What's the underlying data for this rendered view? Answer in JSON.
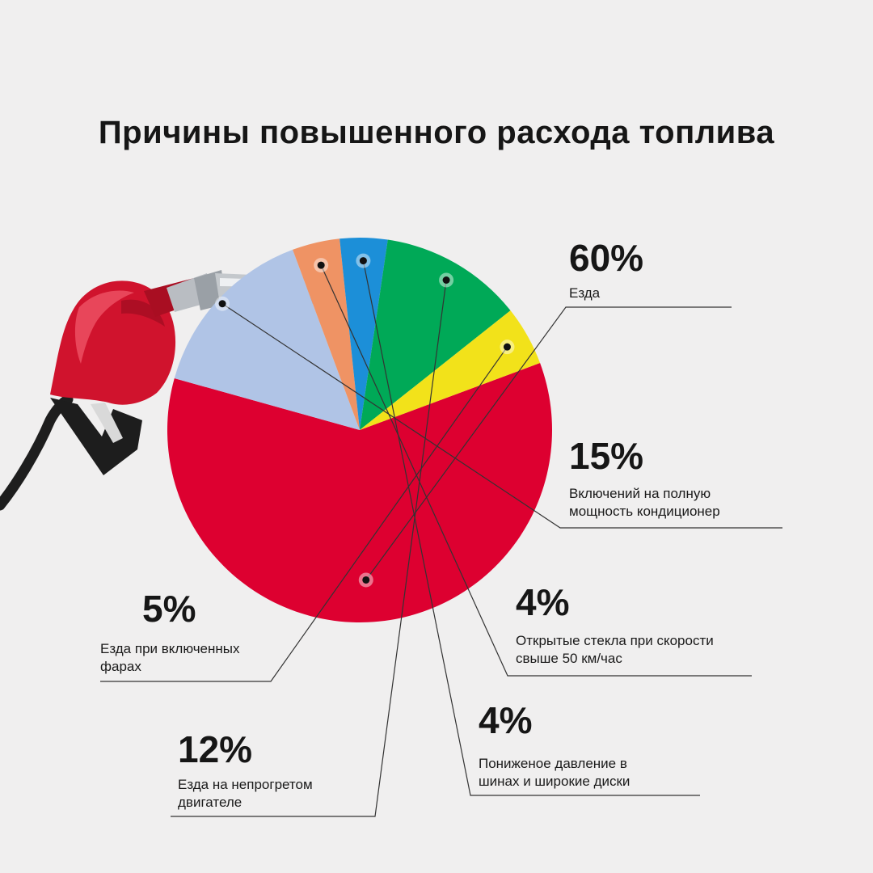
{
  "title": "Причины повышенного расхода топлива",
  "colors": {
    "background": "#f0efef",
    "text": "#161616",
    "leader": "#333333"
  },
  "icon": "fuel-nozzle-icon",
  "chart_data": {
    "type": "pie",
    "title": "Причины повышенного расхода топлива",
    "slices": [
      {
        "value": 60,
        "value_label": "60%",
        "label": "Езда",
        "color": "#dd0030"
      },
      {
        "value": 15,
        "value_label": "15%",
        "label": "Включений на полную\nмощность кондиционер",
        "color": "#b0c4e6"
      },
      {
        "value": 4,
        "value_label": "4%",
        "label": "Открытые стекла при скорости\nсвыше 50 км/час",
        "color": "#ef9364"
      },
      {
        "value": 4,
        "value_label": "4%",
        "label": "Пониженое давление в\nшинах и широкие диски",
        "color": "#1c8fd8"
      },
      {
        "value": 12,
        "value_label": "12%",
        "label": "Езда на непрогретом\nдвигателе",
        "color": "#00a957"
      },
      {
        "value": 5,
        "value_label": "5%",
        "label": "Езда  при включенных\nфарах",
        "color": "#f2e21a"
      }
    ]
  }
}
